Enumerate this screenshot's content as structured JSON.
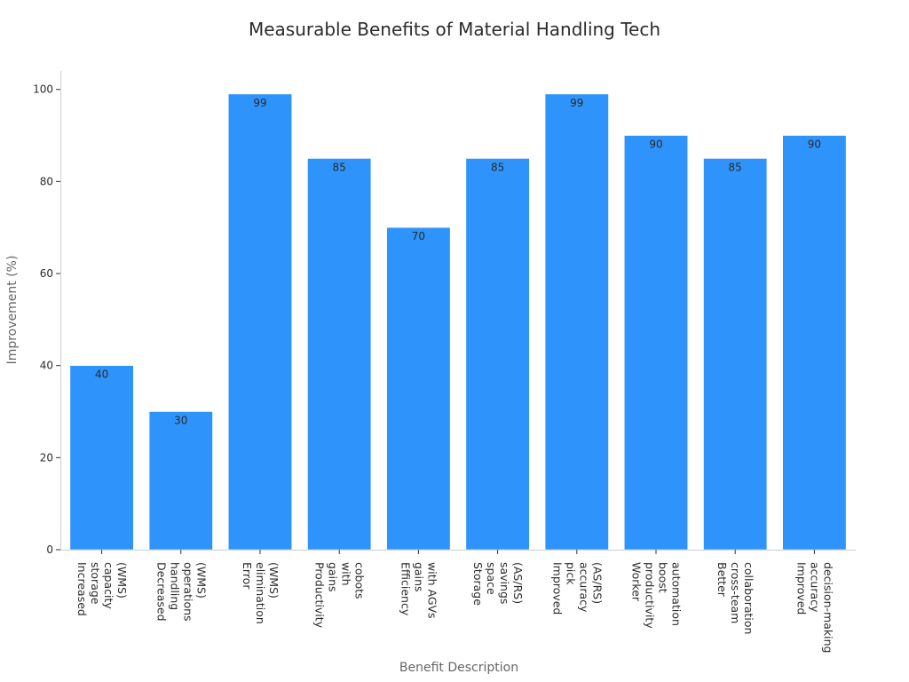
{
  "chart_data": {
    "type": "bar",
    "title": "Measurable Benefits of Material Handling Tech",
    "xlabel": "Benefit Description",
    "ylabel": "Improvement (%)",
    "ylim": [
      0,
      104
    ],
    "yticks": [
      0,
      20,
      40,
      60,
      80,
      100
    ],
    "grid": false,
    "bar_color": "#2e93fa",
    "categories": [
      [
        "Increased",
        "storage",
        "capacity",
        "(WMS)"
      ],
      [
        "Decreased",
        "handling",
        "operations",
        "(WMS)"
      ],
      [
        "Error",
        "elimination",
        "(WMS)"
      ],
      [
        "Productivity",
        "gains",
        "with",
        "cobots"
      ],
      [
        "Efficiency",
        "gains",
        "with AGVs"
      ],
      [
        "Storage",
        "space",
        "savings",
        "(AS/RS)"
      ],
      [
        "Improved",
        "pick",
        "accuracy",
        "(AS/RS)"
      ],
      [
        "Worker",
        "productivity",
        "boost",
        "automation"
      ],
      [
        "Better",
        "cross-team",
        "collaboration"
      ],
      [
        "Improved",
        "accuracy",
        "decision-making"
      ]
    ],
    "values": [
      40,
      30,
      99,
      85,
      70,
      85,
      99,
      90,
      85,
      90
    ]
  }
}
